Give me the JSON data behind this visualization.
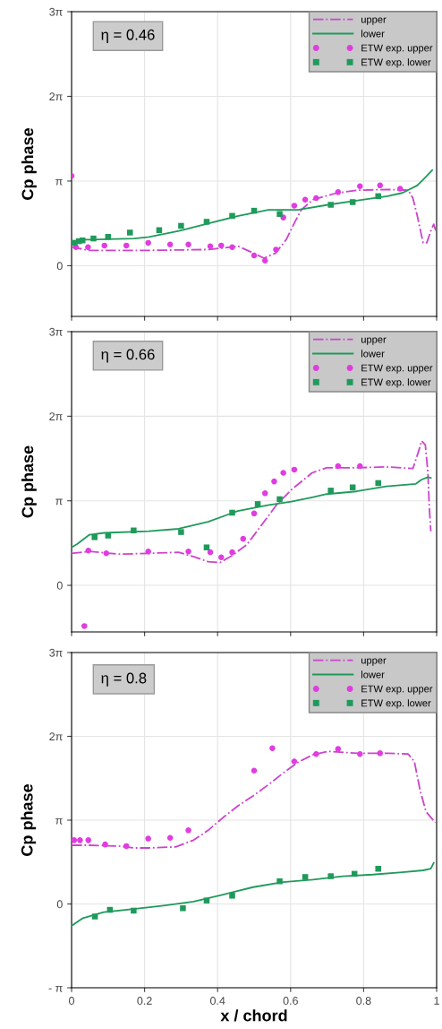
{
  "chart_data": [
    {
      "type": "line",
      "ylabel": "Cp phase",
      "annotations": [
        "η = 0.46"
      ],
      "xlim": [
        0,
        1
      ],
      "xticks": [
        0,
        0.2,
        0.4,
        0.6,
        0.8,
        1
      ],
      "ylim": [
        -1.88,
        9.4248
      ],
      "yticks": [
        {
          "value": 0,
          "label": "0"
        },
        {
          "value": 3.1416,
          "label": "π"
        },
        {
          "value": 6.2832,
          "label": "2π"
        },
        {
          "value": 9.4248,
          "label": "3π"
        }
      ],
      "tick_labels": "y",
      "grid": true,
      "legend": "top right",
      "series": [
        {
          "name": "upper",
          "line_style": "dashdot",
          "color": "#cc44cc",
          "x": [
            0,
            0.049,
            0.131,
            0.212,
            0.376,
            0.457,
            0.498,
            0.527,
            0.559,
            0.588,
            0.612,
            0.629,
            0.661,
            0.727,
            0.784,
            0.865,
            0.922,
            0.935,
            0.947,
            0.963,
            0.973,
            0.984,
            0.992,
            0.998
          ],
          "values": [
            0.69,
            0.57,
            0.57,
            0.57,
            0.6,
            0.72,
            0.47,
            0.28,
            0.47,
            0.97,
            1.63,
            2.07,
            2.45,
            2.7,
            2.8,
            2.83,
            2.8,
            2.51,
            1.85,
            0.85,
            0.85,
            1.29,
            1.54,
            1.29
          ]
        },
        {
          "name": "lower",
          "line_style": "solid",
          "color": "#1f9a5a",
          "x": [
            0,
            0.024,
            0.049,
            0.171,
            0.212,
            0.294,
            0.376,
            0.457,
            0.539,
            0.62,
            0.702,
            0.784,
            0.865,
            0.906,
            0.947,
            0.971,
            0.988
          ],
          "values": [
            0.82,
            0.97,
            0.97,
            1.01,
            1.07,
            1.29,
            1.57,
            1.85,
            2.07,
            2.07,
            2.26,
            2.42,
            2.58,
            2.7,
            2.98,
            3.3,
            3.55
          ]
        },
        {
          "name": "ETW exp. upper",
          "type": "scatter",
          "marker": "circle",
          "color": "#e03ce0",
          "x": [
            0,
            0.012,
            0.045,
            0.09,
            0.15,
            0.21,
            0.27,
            0.32,
            0.38,
            0.41,
            0.44,
            0.5,
            0.53,
            0.56,
            0.58,
            0.61,
            0.64,
            0.67,
            0.73,
            0.79,
            0.845,
            0.9
          ],
          "values": [
            3.33,
            0.69,
            0.69,
            0.75,
            0.75,
            0.85,
            0.79,
            0.79,
            0.72,
            0.75,
            0.69,
            0.38,
            0.19,
            0.6,
            1.79,
            2.23,
            2.45,
            2.51,
            2.73,
            2.95,
            2.98,
            2.86
          ]
        },
        {
          "name": "ETW exp. lower",
          "type": "scatter",
          "marker": "square",
          "color": "#1f9a5a",
          "x": [
            0.008,
            0.02,
            0.03,
            0.06,
            0.1,
            0.16,
            0.24,
            0.3,
            0.37,
            0.44,
            0.5,
            0.57,
            0.71,
            0.77,
            0.84
          ],
          "values": [
            0.85,
            0.91,
            0.94,
            1.01,
            1.07,
            1.23,
            1.32,
            1.48,
            1.63,
            1.85,
            2.04,
            1.92,
            2.26,
            2.36,
            2.58
          ]
        }
      ]
    },
    {
      "type": "line",
      "ylabel": "Cp phase",
      "annotations": [
        "η = 0.66"
      ],
      "xlim": [
        0,
        1
      ],
      "xticks": [
        0,
        0.2,
        0.4,
        0.6,
        0.8,
        1
      ],
      "ylim": [
        -1.73,
        9.4248
      ],
      "yticks": [
        {
          "value": 0,
          "label": "0"
        },
        {
          "value": 3.1416,
          "label": "π"
        },
        {
          "value": 6.2832,
          "label": "2π"
        },
        {
          "value": 9.4248,
          "label": "3π"
        }
      ],
      "tick_labels": "y",
      "grid": true,
      "legend": "top right",
      "series": [
        {
          "name": "upper",
          "line_style": "dashdot",
          "color": "#cc44cc",
          "x": [
            0,
            0.049,
            0.13,
            0.211,
            0.293,
            0.333,
            0.374,
            0.407,
            0.439,
            0.48,
            0.52,
            0.561,
            0.602,
            0.659,
            0.699,
            0.78,
            0.862,
            0.935,
            0.951,
            0.959,
            0.969,
            0.976,
            0.98,
            0.984
          ],
          "values": [
            1.19,
            1.26,
            1.16,
            1.19,
            1.23,
            1.07,
            0.88,
            0.85,
            1.1,
            1.51,
            2.23,
            2.98,
            3.55,
            4.18,
            4.37,
            4.37,
            4.4,
            4.34,
            5.0,
            5.37,
            5.22,
            4.21,
            2.89,
            2.01
          ]
        },
        {
          "name": "lower",
          "line_style": "solid",
          "color": "#1f9a5a",
          "x": [
            0,
            0.016,
            0.049,
            0.089,
            0.211,
            0.293,
            0.374,
            0.455,
            0.537,
            0.602,
            0.659,
            0.699,
            0.78,
            0.862,
            0.943,
            0.959,
            0.976,
            0.984
          ],
          "values": [
            1.41,
            1.54,
            1.88,
            1.95,
            2.01,
            2.1,
            2.36,
            2.76,
            2.98,
            3.11,
            3.27,
            3.39,
            3.49,
            3.68,
            3.77,
            3.93,
            4.02,
            3.99
          ]
        },
        {
          "name": "ETW exp. upper",
          "type": "scatter",
          "marker": "circle",
          "color": "#e03ce0",
          "x": [
            0.035,
            0.046,
            0.095,
            0.21,
            0.32,
            0.38,
            0.41,
            0.44,
            0.47,
            0.5,
            0.53,
            0.555,
            0.58,
            0.61,
            0.73,
            0.79
          ],
          "values": [
            -1.51,
            1.29,
            1.19,
            1.26,
            1.26,
            1.23,
            1.04,
            1.23,
            1.73,
            2.67,
            3.42,
            3.86,
            4.18,
            4.3,
            4.43,
            4.43
          ]
        },
        {
          "name": "ETW exp. lower",
          "type": "scatter",
          "marker": "square",
          "color": "#1f9a5a",
          "x": [
            0.063,
            0.1,
            0.17,
            0.3,
            0.37,
            0.44,
            0.51,
            0.57,
            0.71,
            0.77,
            0.84
          ],
          "values": [
            1.79,
            1.85,
            2.04,
            1.98,
            1.41,
            2.7,
            3.02,
            3.2,
            3.52,
            3.64,
            3.8
          ]
        }
      ]
    },
    {
      "type": "line",
      "ylabel": "Cp phase",
      "xlabel": "x / chord",
      "annotations": [
        "η = 0.8"
      ],
      "xlim": [
        0,
        1
      ],
      "xticks": [
        0,
        0.2,
        0.4,
        0.6,
        0.8,
        1
      ],
      "ylim": [
        -3.1416,
        9.4248
      ],
      "yticks": [
        {
          "value": -3.1416,
          "label": "- π"
        },
        {
          "value": 0,
          "label": "0"
        },
        {
          "value": 3.1416,
          "label": "π"
        },
        {
          "value": 6.2832,
          "label": "2π"
        },
        {
          "value": 9.4248,
          "label": "3π"
        }
      ],
      "grid": true,
      "legend": "top right",
      "series": [
        {
          "name": "upper",
          "line_style": "dashdot",
          "color": "#cc44cc",
          "x": [
            0,
            0.047,
            0.129,
            0.17,
            0.211,
            0.285,
            0.334,
            0.374,
            0.415,
            0.456,
            0.497,
            0.538,
            0.579,
            0.62,
            0.661,
            0.702,
            0.783,
            0.865,
            0.922,
            0.939,
            0.955,
            0.971,
            0.996
          ],
          "values": [
            2.2,
            2.2,
            2.17,
            2.1,
            2.1,
            2.14,
            2.39,
            2.76,
            3.24,
            3.68,
            4.05,
            4.46,
            4.9,
            5.31,
            5.59,
            5.72,
            5.65,
            5.65,
            5.62,
            5.34,
            4.24,
            3.46,
            3.05
          ]
        },
        {
          "name": "lower",
          "line_style": "solid",
          "color": "#1f9a5a",
          "x": [
            0,
            0.031,
            0.088,
            0.17,
            0.252,
            0.334,
            0.415,
            0.497,
            0.579,
            0.661,
            0.742,
            0.824,
            0.906,
            0.963,
            0.984,
            0.992
          ],
          "values": [
            -0.82,
            -0.53,
            -0.31,
            -0.19,
            -0.06,
            0.09,
            0.35,
            0.63,
            0.82,
            0.91,
            1.04,
            1.1,
            1.19,
            1.26,
            1.32,
            1.54
          ]
        },
        {
          "name": "ETW exp. upper",
          "type": "scatter",
          "marker": "circle",
          "color": "#e03ce0",
          "x": [
            0.007,
            0.023,
            0.046,
            0.092,
            0.15,
            0.21,
            0.27,
            0.32,
            0.5,
            0.55,
            0.61,
            0.67,
            0.73,
            0.79,
            0.845
          ],
          "values": [
            2.39,
            2.39,
            2.39,
            2.23,
            2.17,
            2.45,
            2.48,
            2.76,
            5.0,
            5.84,
            5.34,
            5.62,
            5.81,
            5.62,
            5.65
          ]
        },
        {
          "name": "ETW exp. lower",
          "type": "scatter",
          "marker": "square",
          "color": "#1f9a5a",
          "x": [
            0.064,
            0.105,
            0.17,
            0.305,
            0.37,
            0.44,
            0.57,
            0.64,
            0.71,
            0.775,
            0.84
          ],
          "values": [
            -0.47,
            -0.22,
            -0.25,
            -0.16,
            0.13,
            0.31,
            0.85,
            1.01,
            1.04,
            1.13,
            1.32
          ]
        }
      ]
    }
  ]
}
